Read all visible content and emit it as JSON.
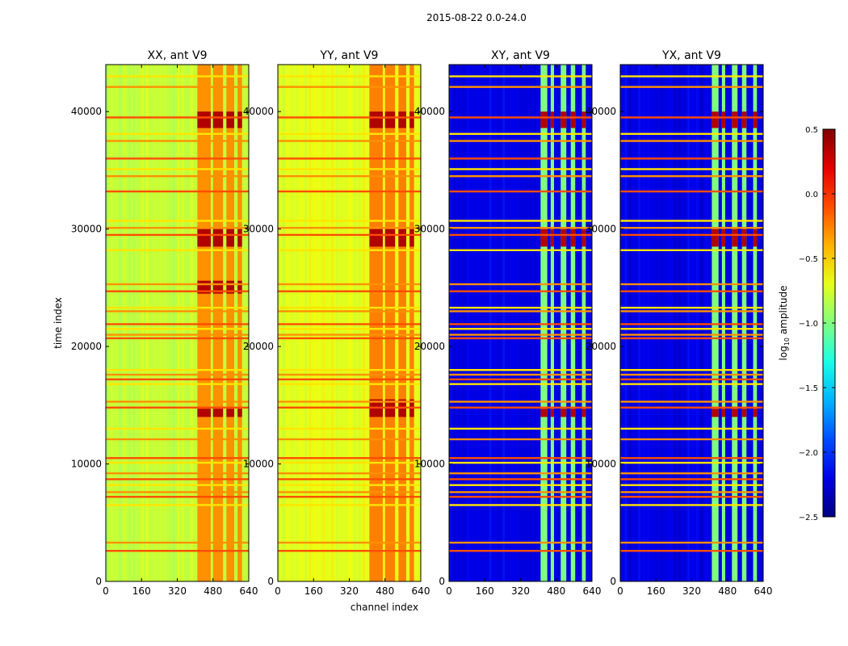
{
  "figure": {
    "suptitle": "2015-08-22 0.0-24.0",
    "xlabel": "channel index",
    "ylabel": "time index"
  },
  "colorbar": {
    "label": "log10 amplitude",
    "label_base": "log",
    "label_sub": "10",
    "label_rest": " amplitude",
    "range": [
      -2.5,
      0.5
    ],
    "ticks": [
      0.5,
      0.0,
      -0.5,
      -1.0,
      -1.5,
      -2.0,
      -2.5
    ],
    "tick_labels": [
      "0.5",
      "0.0",
      "−0.5",
      "−1.0",
      "−1.5",
      "−2.0",
      "−2.5"
    ],
    "colormap": "jet"
  },
  "chart_data": [
    {
      "type": "heatmap",
      "title": "XX, ant V9",
      "xlim": [
        0,
        640
      ],
      "ylim": [
        0,
        44000
      ],
      "xticks": [
        0,
        160,
        320,
        480,
        640
      ],
      "yticks": [
        0,
        10000,
        20000,
        30000,
        40000
      ],
      "xtick_labels": [
        "0",
        "160",
        "320",
        "480",
        "640"
      ],
      "ytick_labels": [
        "0",
        "10000",
        "20000",
        "30000",
        "40000"
      ],
      "background_level": -0.8,
      "band_level": -0.3,
      "bright_channels": [
        [
          410,
          470
        ],
        [
          480,
          525
        ],
        [
          540,
          575
        ],
        [
          590,
          610
        ]
      ],
      "strong_time_ranges": [
        [
          14000,
          14700
        ],
        [
          24500,
          25600
        ],
        [
          28500,
          30000
        ],
        [
          38600,
          40000
        ]
      ]
    },
    {
      "type": "heatmap",
      "title": "YY, ant V9",
      "xlim": [
        0,
        640
      ],
      "ylim": [
        0,
        44000
      ],
      "xticks": [
        0,
        160,
        320,
        480,
        640
      ],
      "yticks": [
        0,
        10000,
        20000,
        30000,
        40000
      ],
      "xtick_labels": [
        "0",
        "160",
        "320",
        "480",
        "640"
      ],
      "ytick_labels": [
        "0",
        "10000",
        "20000",
        "30000",
        "40000"
      ],
      "background_level": -0.7,
      "band_level": -0.25,
      "bright_channels": [
        [
          410,
          470
        ],
        [
          480,
          525
        ],
        [
          540,
          575
        ],
        [
          590,
          610
        ]
      ],
      "strong_time_ranges": [
        [
          14000,
          15500
        ],
        [
          28500,
          30000
        ],
        [
          38600,
          40000
        ]
      ]
    },
    {
      "type": "heatmap",
      "title": "XY, ant V9",
      "xlim": [
        0,
        640
      ],
      "ylim": [
        0,
        44000
      ],
      "xticks": [
        0,
        160,
        320,
        480,
        640
      ],
      "yticks": [
        0,
        10000,
        20000,
        30000,
        40000
      ],
      "xtick_labels": [
        "0",
        "160",
        "320",
        "480",
        "640"
      ],
      "ytick_labels": [
        "0",
        "10000",
        "20000",
        "30000",
        "40000"
      ],
      "background_level": -2.2,
      "band_level": -1.0,
      "bright_channels": [
        [
          410,
          440
        ],
        [
          455,
          470
        ],
        [
          500,
          525
        ],
        [
          545,
          565
        ],
        [
          595,
          612
        ]
      ],
      "strong_time_ranges": [
        [
          14000,
          14700
        ],
        [
          28500,
          30000
        ],
        [
          38600,
          40000
        ]
      ]
    },
    {
      "type": "heatmap",
      "title": "YX, ant V9",
      "xlim": [
        0,
        640
      ],
      "ylim": [
        0,
        44000
      ],
      "xticks": [
        0,
        160,
        320,
        480,
        640
      ],
      "yticks": [
        0,
        10000,
        20000,
        30000,
        40000
      ],
      "xtick_labels": [
        "0",
        "160",
        "320",
        "480",
        "640"
      ],
      "ytick_labels": [
        "0",
        "10000",
        "20000",
        "30000",
        "40000"
      ],
      "background_level": -2.2,
      "band_level": -1.0,
      "bright_channels": [
        [
          410,
          440
        ],
        [
          455,
          470
        ],
        [
          500,
          525
        ],
        [
          545,
          565
        ],
        [
          595,
          612
        ]
      ],
      "strong_time_ranges": [
        [
          14000,
          14700
        ],
        [
          28500,
          30000
        ],
        [
          38600,
          40000
        ]
      ]
    }
  ],
  "flag_rows": [
    2600,
    3300,
    6500,
    7200,
    7600,
    8200,
    8700,
    9200,
    10100,
    10500,
    12100,
    13000,
    14800,
    15300,
    16800,
    17200,
    17600,
    18000,
    20700,
    21000,
    21500,
    21900,
    23000,
    23300,
    24700,
    25300,
    28200,
    29500,
    30100,
    30700,
    33200,
    34500,
    35100,
    36000,
    37500,
    38100,
    39500,
    42100,
    43000
  ]
}
